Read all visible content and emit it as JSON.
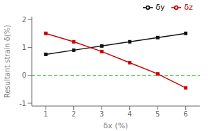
{
  "chart_data": {
    "type": "line",
    "x": [
      1,
      2,
      3,
      4,
      5,
      6
    ],
    "series": [
      {
        "name": "δy",
        "color": "#111111",
        "marker": "square",
        "line_style": "solid",
        "values": [
          0.75,
          0.9,
          1.05,
          1.2,
          1.35,
          1.5
        ]
      },
      {
        "name": "δz",
        "color": "#cc0000",
        "marker": "square",
        "line_style": "solid",
        "values": [
          1.5,
          1.2,
          0.85,
          0.45,
          0.05,
          -0.45
        ]
      }
    ],
    "xlabel": "δx (%)",
    "ylabel": "Resultant strain δ(%)",
    "xlim": [
      0.5,
      6.5
    ],
    "ylim": [
      -1.1,
      2.1
    ],
    "xticks": [
      1,
      2,
      3,
      4,
      5,
      6
    ],
    "yticks": [
      -1,
      0,
      1,
      2
    ],
    "reference_lines": [
      {
        "y": 0,
        "color": "#00bb00",
        "line_style": "dashed"
      }
    ],
    "legend": "upper right",
    "grid": false
  }
}
